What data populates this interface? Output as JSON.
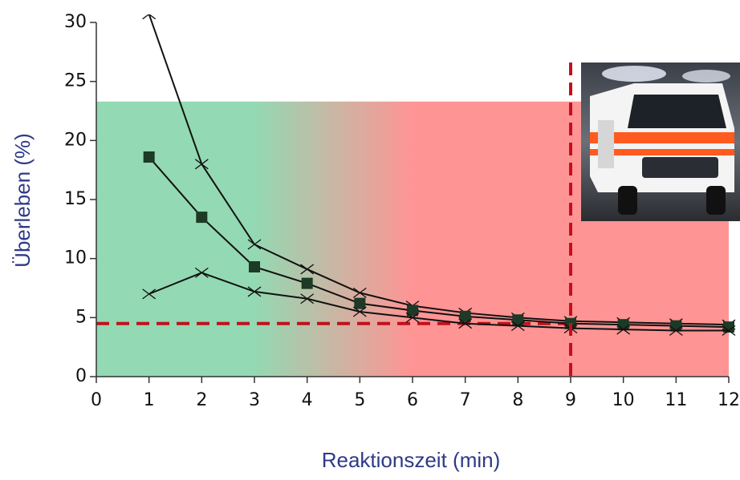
{
  "chart_data": {
    "type": "line",
    "x_label": "Reaktionszeit (min)",
    "y_label": "Überleben (%)",
    "x": [
      1,
      2,
      3,
      4,
      5,
      6,
      7,
      8,
      9,
      10,
      11,
      12
    ],
    "series": [
      {
        "color": "#111111",
        "marker": "x",
        "values": [
          30.7,
          18.0,
          11.2,
          9.1,
          7.1,
          6.0,
          5.4,
          5.0,
          4.7,
          4.6,
          4.5,
          4.4
        ]
      },
      {
        "color": "#111111",
        "marker": "square",
        "values": [
          18.6,
          13.5,
          9.3,
          7.9,
          6.2,
          5.6,
          5.1,
          4.8,
          4.5,
          4.4,
          4.3,
          4.2
        ]
      },
      {
        "color": "#111111",
        "marker": "x",
        "values": [
          7.0,
          8.8,
          7.2,
          6.6,
          5.5,
          5.0,
          4.5,
          4.3,
          4.1,
          4.0,
          3.9,
          3.9
        ]
      }
    ],
    "xlim": [
      0,
      12
    ],
    "xticks": [
      0,
      1,
      2,
      3,
      4,
      5,
      6,
      7,
      8,
      9,
      10,
      11,
      12
    ],
    "ylim": [
      0,
      30
    ],
    "yticks": [
      0,
      5,
      10,
      15,
      20,
      25,
      30
    ],
    "background_zone": {
      "ymax": 23.3,
      "green_until": 3,
      "red_from": 6,
      "green": "#93d9b3",
      "red": "#ff9494"
    },
    "reference_lines": {
      "x": 9,
      "y": 4.5,
      "color": "#c2101c"
    }
  }
}
